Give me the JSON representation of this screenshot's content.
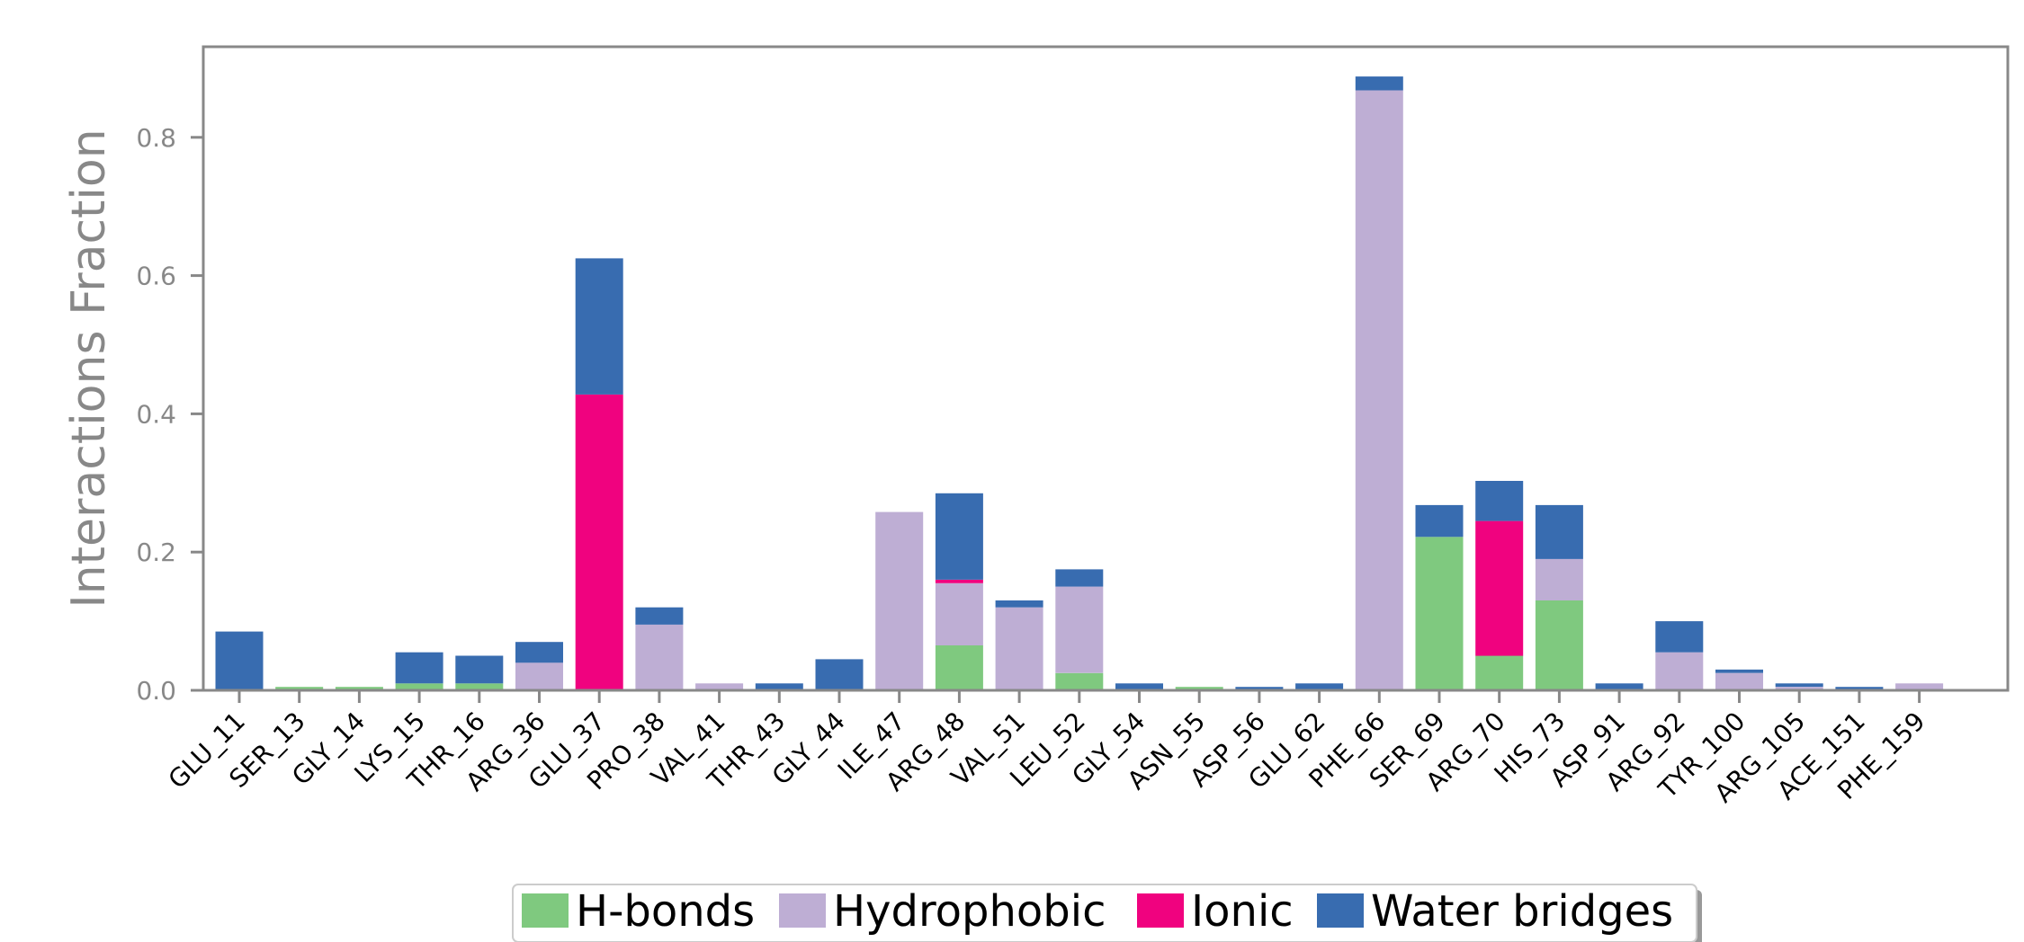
{
  "chart_data": {
    "type": "bar",
    "stacked": true,
    "title": "",
    "xlabel": "",
    "ylabel": "Interactions Fraction",
    "ylim": [
      0,
      0.93
    ],
    "yticks": [
      "0.0",
      "0.2",
      "0.4",
      "0.6",
      "0.8"
    ],
    "legend_position": "bottom-center",
    "grid": false,
    "categories": [
      "GLU_11",
      "SER_13",
      "GLY_14",
      "LYS_15",
      "THR_16",
      "ARG_36",
      "GLU_37",
      "PRO_38",
      "VAL_41",
      "THR_43",
      "GLY_44",
      "ILE_47",
      "ARG_48",
      "VAL_51",
      "LEU_52",
      "GLY_54",
      "ASN_55",
      "ASP_56",
      "GLU_62",
      "PHE_66",
      "SER_69",
      "ARG_70",
      "HIS_73",
      "ASP_91",
      "ARG_92",
      "TYR_100",
      "ARG_105",
      "ACE_151",
      "PHE_159"
    ],
    "series": [
      {
        "name": "H-bonds",
        "color": "#7fc97f",
        "values": [
          0,
          0.005,
          0.005,
          0.01,
          0.01,
          0,
          0,
          0,
          0,
          0,
          0,
          0,
          0.065,
          0,
          0.025,
          0,
          0.005,
          0,
          0,
          0,
          0.222,
          0.05,
          0.13,
          0,
          0,
          0,
          0,
          0,
          0
        ]
      },
      {
        "name": "Hydrophobic",
        "color": "#beaed4",
        "values": [
          0,
          0,
          0,
          0,
          0,
          0.04,
          0,
          0.095,
          0.01,
          0,
          0,
          0.258,
          0.09,
          0.12,
          0.125,
          0,
          0,
          0,
          0,
          0.868,
          0,
          0,
          0.06,
          0,
          0.055,
          0.025,
          0.005,
          0,
          0.01
        ]
      },
      {
        "name": "Ionic",
        "color": "#f0027f",
        "values": [
          0,
          0,
          0,
          0,
          0,
          0,
          0.428,
          0,
          0,
          0,
          0,
          0,
          0.005,
          0,
          0,
          0,
          0,
          0,
          0,
          0,
          0,
          0.195,
          0,
          0,
          0,
          0,
          0,
          0,
          0
        ]
      },
      {
        "name": "Water bridges",
        "color": "#386cb0",
        "values": [
          0.085,
          0,
          0,
          0.045,
          0.04,
          0.03,
          0.197,
          0.025,
          0,
          0.01,
          0.045,
          0,
          0.125,
          0.01,
          0.025,
          0.01,
          0,
          0.005,
          0.01,
          0.02,
          0.046,
          0.058,
          0.078,
          0.01,
          0.045,
          0.005,
          0.005,
          0.005,
          0
        ]
      }
    ]
  }
}
